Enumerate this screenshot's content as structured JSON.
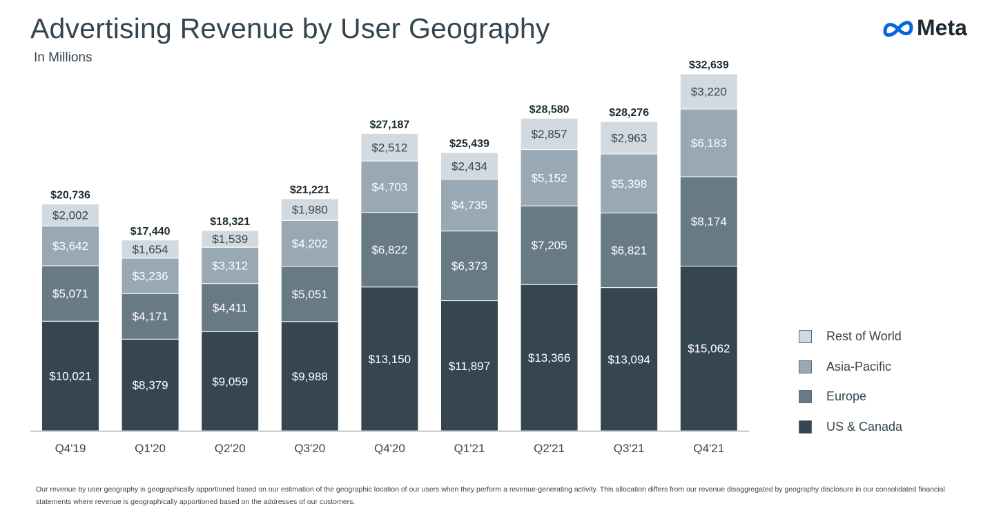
{
  "header": {
    "title": "Advertising Revenue by User Geography",
    "subtitle": "In Millions",
    "brand": "Meta"
  },
  "footnote": "Our revenue by user geography is geographically apportioned based on our estimation of the geographic location of our users when they perform a revenue-generating activity. This allocation differs from our revenue disaggregated by geography disclosure in our consolidated financial statements where revenue is geographically apportioned based on the addresses of our customers.",
  "colors": {
    "us_canada": "#354650",
    "europe": "#697a87",
    "asia_pacific": "#98a8b4",
    "rest_of_world": "#d3dadf",
    "brand_blue": "#0467df"
  },
  "chart_data": {
    "type": "bar",
    "stacked": true,
    "categories": [
      "Q4'19",
      "Q1'20",
      "Q2'20",
      "Q3'20",
      "Q4'20",
      "Q1'21",
      "Q2'21",
      "Q3'21",
      "Q4'21"
    ],
    "series": [
      {
        "name": "US & Canada",
        "values": [
          10021,
          8379,
          9059,
          9988,
          13150,
          11897,
          13366,
          13094,
          15062
        ],
        "labels": [
          "$10,021",
          "$8,379",
          "$9,059",
          "$9,988",
          "$13,150",
          "$11,897",
          "$13,366",
          "$13,094",
          "$15,062"
        ]
      },
      {
        "name": "Europe",
        "values": [
          5071,
          4171,
          4411,
          5051,
          6822,
          6373,
          7205,
          6821,
          8174
        ],
        "labels": [
          "$5,071",
          "$4,171",
          "$4,411",
          "$5,051",
          "$6,822",
          "$6,373",
          "$7,205",
          "$6,821",
          "$8,174"
        ]
      },
      {
        "name": "Asia-Pacific",
        "values": [
          3642,
          3236,
          3312,
          4202,
          4703,
          4735,
          5152,
          5398,
          6183
        ],
        "labels": [
          "$3,642",
          "$3,236",
          "$3,312",
          "$4,202",
          "$4,703",
          "$4,735",
          "$5,152",
          "$5,398",
          "$6,183"
        ]
      },
      {
        "name": "Rest of World",
        "values": [
          2002,
          1654,
          1539,
          1980,
          2512,
          2434,
          2857,
          2963,
          3220
        ],
        "labels": [
          "$2,002",
          "$1,654",
          "$1,539",
          "$1,980",
          "$2,512",
          "$2,434",
          "$2,857",
          "$2,963",
          "$3,220"
        ]
      }
    ],
    "totals": [
      20736,
      17440,
      18321,
      21221,
      27187,
      25439,
      28580,
      28276,
      32639
    ],
    "total_labels": [
      "$20,736",
      "$17,440",
      "$18,321",
      "$21,221",
      "$27,187",
      "$25,439",
      "$28,580",
      "$28,276",
      "$32,639"
    ],
    "legend_order": [
      "Rest of World",
      "Asia-Pacific",
      "Europe",
      "US & Canada"
    ],
    "legend_position": "right",
    "grid": false
  }
}
